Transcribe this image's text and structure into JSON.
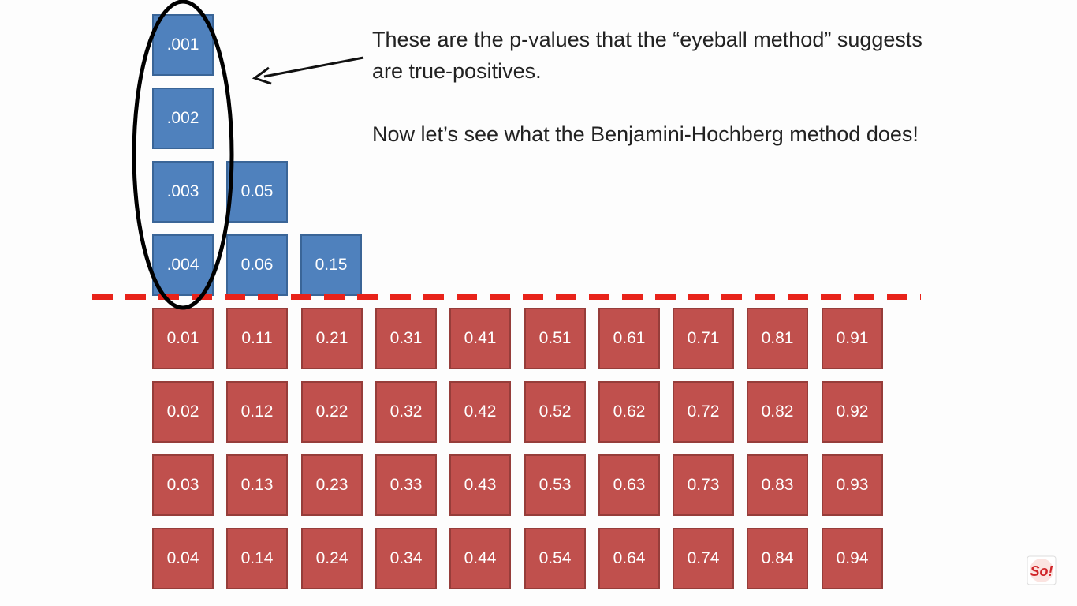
{
  "caption": {
    "line1": "These are the p-values that the “eyeball method” suggests",
    "line2": "are true-positives.",
    "line3": "Now let’s see what the Benjamini-Hochberg method does!"
  },
  "blue_columns": [
    [
      ".001",
      ".002",
      ".003",
      ".004"
    ],
    [
      "0.05",
      "0.06"
    ],
    [
      "0.15"
    ]
  ],
  "red_columns": [
    [
      "0.01",
      "0.02",
      "0.03",
      "0.04"
    ],
    [
      "0.11",
      "0.12",
      "0.13",
      "0.14"
    ],
    [
      "0.21",
      "0.22",
      "0.23",
      "0.24"
    ],
    [
      "0.31",
      "0.32",
      "0.33",
      "0.34"
    ],
    [
      "0.41",
      "0.42",
      "0.43",
      "0.44"
    ],
    [
      "0.51",
      "0.52",
      "0.53",
      "0.54"
    ],
    [
      "0.61",
      "0.62",
      "0.63",
      "0.64"
    ],
    [
      "0.71",
      "0.72",
      "0.73",
      "0.74"
    ],
    [
      "0.81",
      "0.82",
      "0.83",
      "0.84"
    ],
    [
      "0.91",
      "0.92",
      "0.93",
      "0.94"
    ]
  ],
  "colors": {
    "blue_box": "#4f81bd",
    "red_box": "#c0504d",
    "threshold_line": "#e8231a",
    "ellipse": "#000000"
  },
  "watermark": {
    "icon": "statquest-logo-icon",
    "text": "So!"
  }
}
